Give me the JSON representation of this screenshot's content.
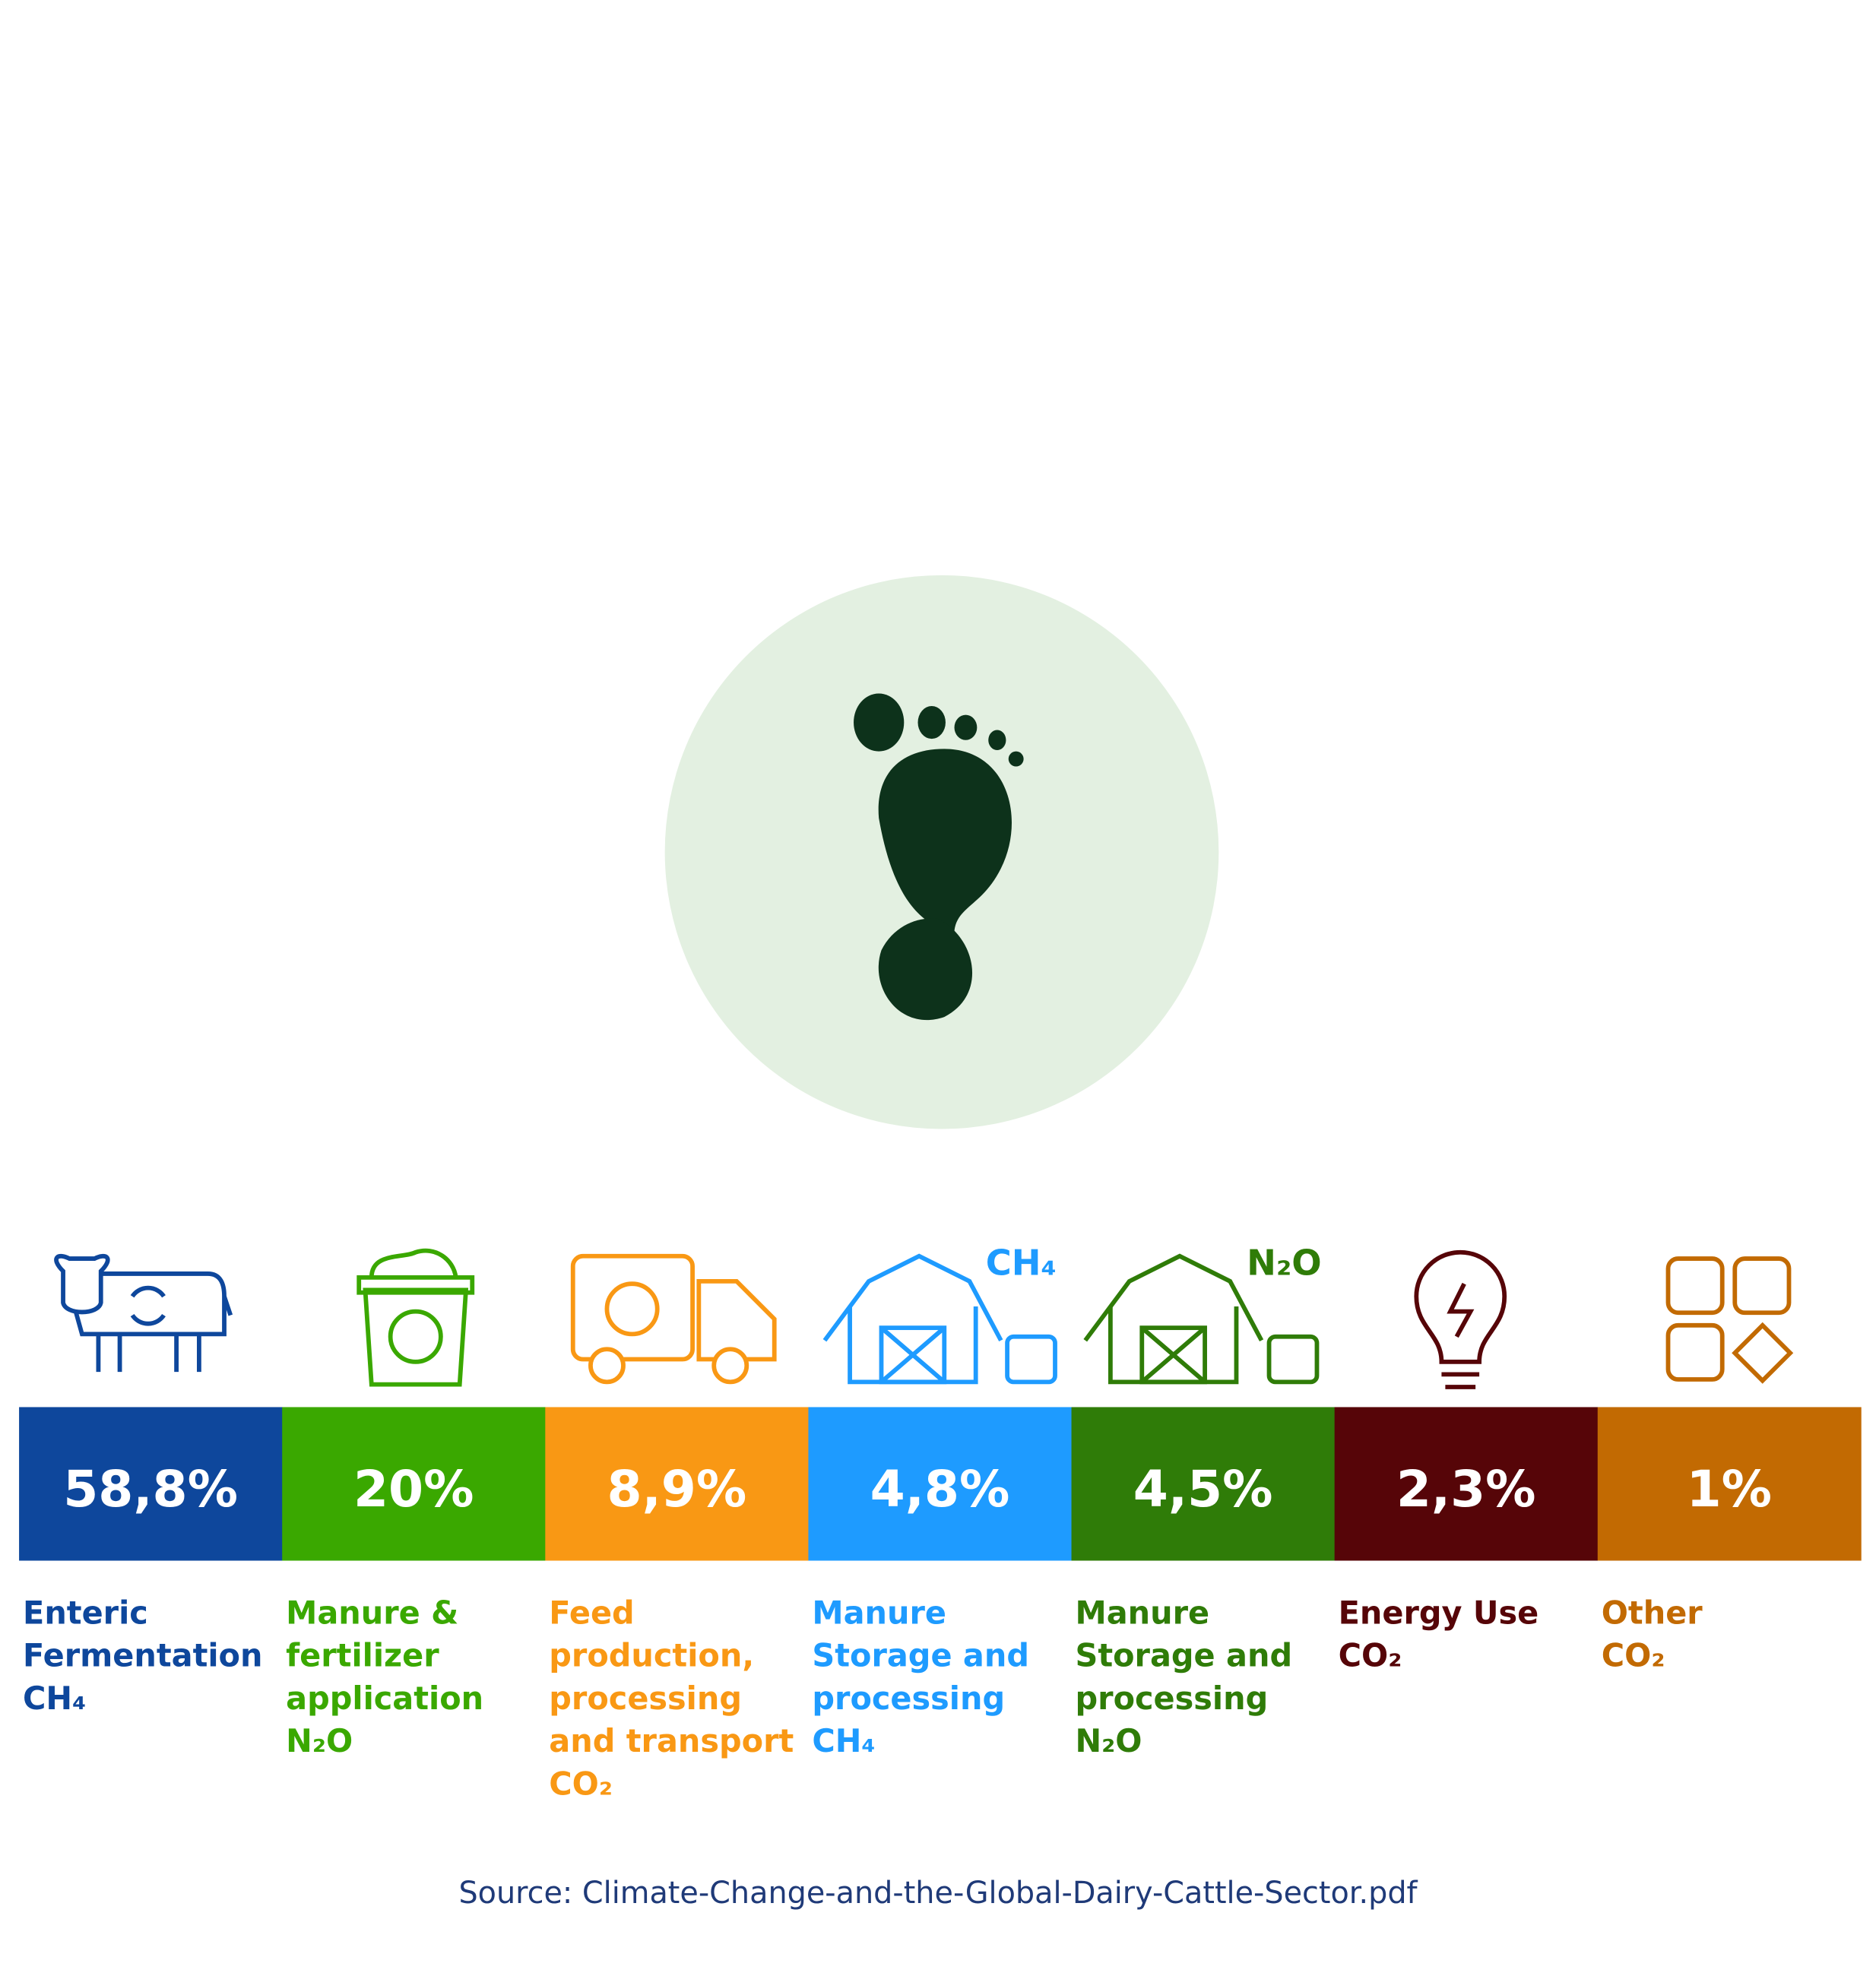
{
  "chart_data": {
    "type": "semi-donut",
    "categories": [
      "Enteric Fermentation",
      "Manure & fertilizer application",
      "Feed production, processing and transport",
      "Manure Storage and processing",
      "Manure Storage and processing",
      "Energy Use",
      "Other"
    ],
    "gases": [
      "CH₄",
      "N₂O",
      "CO₂",
      "CH₄",
      "N₂O",
      "CO₂",
      "CO₂"
    ],
    "icon_badges": [
      null,
      null,
      null,
      "CH₄",
      "N₂O",
      null,
      null
    ],
    "values": [
      58.8,
      20,
      8.9,
      4.8,
      4.5,
      2.3,
      1
    ],
    "value_labels": [
      "58,8%",
      "20%",
      "8,9%",
      "4,8%",
      "4,5%",
      "2,3%",
      "1%"
    ],
    "colors": [
      "#0e479c",
      "#3aa800",
      "#f99814",
      "#1e9bff",
      "#2f7c08",
      "#560508",
      "#c26a02"
    ],
    "source": "Source: Climate-Change-and-the-Global-Dairy-Cattle-Sector.pdf"
  }
}
